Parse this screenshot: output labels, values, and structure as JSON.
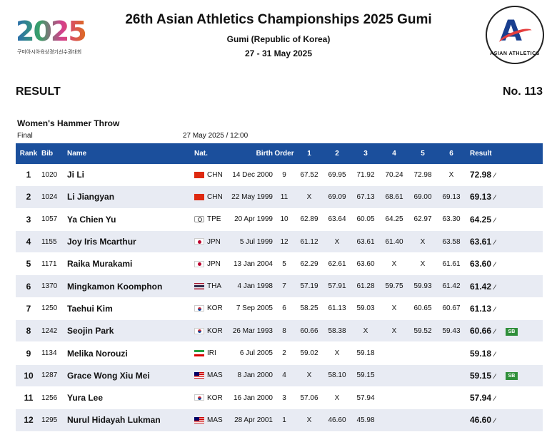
{
  "header": {
    "logo_left_text": "2025",
    "logo_left_sub": "구미아시아육상경기선수권대회",
    "title": "26th Asian Athletics Championships 2025 Gumi",
    "location": "Gumi (Republic of Korea)",
    "dates": "27 - 31 May 2025",
    "logo_right_letter": "A",
    "logo_right_text": "ASIAN ATHLETICS"
  },
  "result_label": "RESULT",
  "result_no": "No. 113",
  "event": {
    "name": "Women's Hammer Throw",
    "round": "Final",
    "datetime": "27 May 2025 / 12:00"
  },
  "table": {
    "columns": [
      "Rank",
      "Bib",
      "Name",
      "Nat.",
      "Birth",
      "Order",
      "1",
      "2",
      "3",
      "4",
      "5",
      "6",
      "Result"
    ],
    "rows": [
      {
        "rank": "1",
        "bib": "1020",
        "name": "Ji Li",
        "nat": "CHN",
        "birth": "14 Dec 2000",
        "order": "9",
        "a1": "67.52",
        "a2": "69.95",
        "a3": "71.92",
        "a4": "70.24",
        "a5": "72.98",
        "a6": "X",
        "result": "72.98",
        "badge": ""
      },
      {
        "rank": "2",
        "bib": "1024",
        "name": "Li Jiangyan",
        "nat": "CHN",
        "birth": "22 May 1999",
        "order": "11",
        "a1": "X",
        "a2": "69.09",
        "a3": "67.13",
        "a4": "68.61",
        "a5": "69.00",
        "a6": "69.13",
        "result": "69.13",
        "badge": ""
      },
      {
        "rank": "3",
        "bib": "1057",
        "name": "Ya Chien Yu",
        "nat": "TPE",
        "birth": "20 Apr 1999",
        "order": "10",
        "a1": "62.89",
        "a2": "63.64",
        "a3": "60.05",
        "a4": "64.25",
        "a5": "62.97",
        "a6": "63.30",
        "result": "64.25",
        "badge": ""
      },
      {
        "rank": "4",
        "bib": "1155",
        "name": "Joy Iris Mcarthur",
        "nat": "JPN",
        "birth": "5 Jul 1999",
        "order": "12",
        "a1": "61.12",
        "a2": "X",
        "a3": "63.61",
        "a4": "61.40",
        "a5": "X",
        "a6": "63.58",
        "result": "63.61",
        "badge": ""
      },
      {
        "rank": "5",
        "bib": "1171",
        "name": "Raika Murakami",
        "nat": "JPN",
        "birth": "13 Jan 2004",
        "order": "5",
        "a1": "62.29",
        "a2": "62.61",
        "a3": "63.60",
        "a4": "X",
        "a5": "X",
        "a6": "61.61",
        "result": "63.60",
        "badge": ""
      },
      {
        "rank": "6",
        "bib": "1370",
        "name": "Mingkamon Koomphon",
        "nat": "THA",
        "birth": "4 Jan 1998",
        "order": "7",
        "a1": "57.19",
        "a2": "57.91",
        "a3": "61.28",
        "a4": "59.75",
        "a5": "59.93",
        "a6": "61.42",
        "result": "61.42",
        "badge": ""
      },
      {
        "rank": "7",
        "bib": "1250",
        "name": "Taehui Kim",
        "nat": "KOR",
        "birth": "7 Sep 2005",
        "order": "6",
        "a1": "58.25",
        "a2": "61.13",
        "a3": "59.03",
        "a4": "X",
        "a5": "60.65",
        "a6": "60.67",
        "result": "61.13",
        "badge": ""
      },
      {
        "rank": "8",
        "bib": "1242",
        "name": "Seojin Park",
        "nat": "KOR",
        "birth": "26 Mar 1993",
        "order": "8",
        "a1": "60.66",
        "a2": "58.38",
        "a3": "X",
        "a4": "X",
        "a5": "59.52",
        "a6": "59.43",
        "result": "60.66",
        "badge": "SB"
      },
      {
        "rank": "9",
        "bib": "1134",
        "name": "Melika Norouzi",
        "nat": "IRI",
        "birth": "6 Jul 2005",
        "order": "2",
        "a1": "59.02",
        "a2": "X",
        "a3": "59.18",
        "a4": "",
        "a5": "",
        "a6": "",
        "result": "59.18",
        "badge": ""
      },
      {
        "rank": "10",
        "bib": "1287",
        "name": "Grace Wong Xiu Mei",
        "nat": "MAS",
        "birth": "8 Jan 2000",
        "order": "4",
        "a1": "X",
        "a2": "58.10",
        "a3": "59.15",
        "a4": "",
        "a5": "",
        "a6": "",
        "result": "59.15",
        "badge": "SB"
      },
      {
        "rank": "11",
        "bib": "1256",
        "name": "Yura Lee",
        "nat": "KOR",
        "birth": "16 Jan 2000",
        "order": "3",
        "a1": "57.06",
        "a2": "X",
        "a3": "57.94",
        "a4": "",
        "a5": "",
        "a6": "",
        "result": "57.94",
        "badge": ""
      },
      {
        "rank": "12",
        "bib": "1295",
        "name": "Nurul Hidayah Lukman",
        "nat": "MAS",
        "birth": "28 Apr 2001",
        "order": "1",
        "a1": "X",
        "a2": "46.60",
        "a3": "45.98",
        "a4": "",
        "a5": "",
        "a6": "",
        "result": "46.60",
        "badge": ""
      }
    ]
  }
}
